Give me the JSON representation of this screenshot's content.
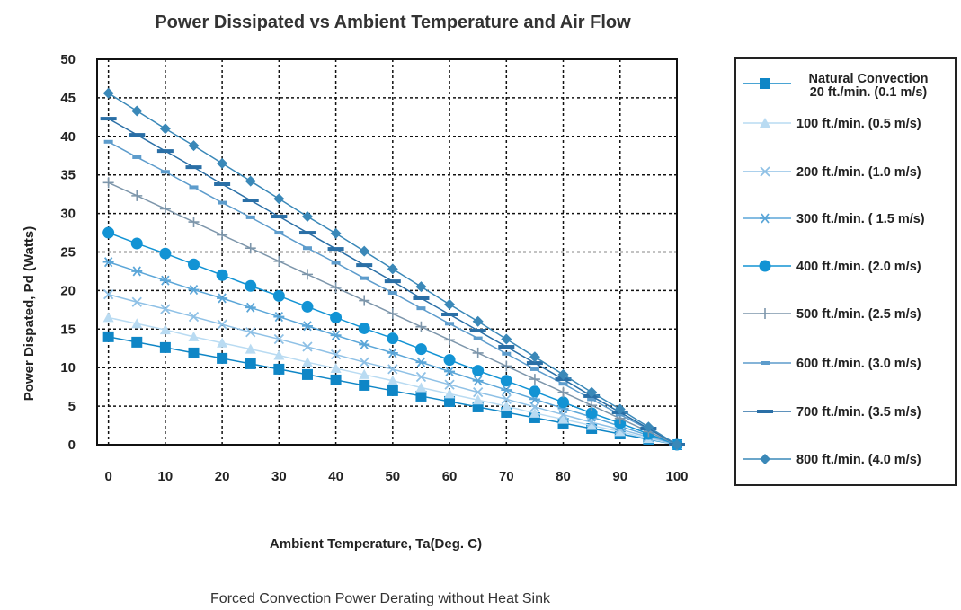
{
  "chart_data": {
    "type": "line",
    "title": "Power Dissipated vs Ambient Temperature and Air Flow",
    "xlabel": "Ambient Temperature, Ta(Deg. C)",
    "ylabel": "Power Dispated, Pd (Watts)",
    "caption": "Forced Convection Power Derating without Heat Sink",
    "xlim": [
      -2,
      100
    ],
    "ylim": [
      0,
      50
    ],
    "x_ticks": [
      "0",
      "10",
      "20",
      "30",
      "40",
      "50",
      "60",
      "70",
      "80",
      "90",
      "100"
    ],
    "y_ticks": [
      "0",
      "5",
      "10",
      "15",
      "20",
      "25",
      "30",
      "35",
      "40",
      "45",
      "50"
    ],
    "grid": true,
    "legend_position": "right",
    "x": [
      0,
      5,
      10,
      15,
      20,
      25,
      30,
      35,
      40,
      45,
      50,
      55,
      60,
      65,
      70,
      75,
      80,
      85,
      90,
      95,
      100
    ],
    "series": [
      {
        "name": "Natural Convection 20 ft./min. (0.1 m/s)",
        "legend_lines": [
          "Natural Convection",
          "20 ft./min. (0.1 m/s)"
        ],
        "marker": "square",
        "color": "#0f86c6",
        "values": [
          14.0,
          13.3,
          12.6,
          11.9,
          11.2,
          10.5,
          9.8,
          9.1,
          8.4,
          7.7,
          7.0,
          6.3,
          5.6,
          4.9,
          4.2,
          3.5,
          2.8,
          2.1,
          1.4,
          0.7,
          0
        ]
      },
      {
        "name": "100 ft./min. (0.5 m/s)",
        "legend_lines": [
          "100 ft./min. (0.5 m/s)"
        ],
        "marker": "triangle",
        "color": "#b9dbf2",
        "values": [
          16.5,
          15.7,
          14.9,
          14.0,
          13.2,
          12.4,
          11.6,
          10.7,
          9.9,
          9.1,
          8.3,
          7.4,
          6.6,
          5.8,
          5.0,
          4.1,
          3.3,
          2.5,
          1.7,
          0.8,
          0
        ]
      },
      {
        "name": "200 ft./min. (1.0 m/s)",
        "legend_lines": [
          "200 ft./min. (1.0 m/s)"
        ],
        "marker": "x",
        "color": "#8fc1e6",
        "values": [
          19.5,
          18.5,
          17.6,
          16.6,
          15.6,
          14.6,
          13.7,
          12.7,
          11.7,
          10.7,
          9.8,
          8.8,
          7.8,
          6.8,
          5.9,
          4.9,
          3.9,
          2.9,
          2.0,
          1.0,
          0
        ]
      },
      {
        "name": "300 ft./min. ( 1.5 m/s)",
        "legend_lines": [
          "300 ft./min. ( 1.5 m/s)"
        ],
        "marker": "asterisk",
        "color": "#5ba6d8",
        "values": [
          23.7,
          22.5,
          21.3,
          20.1,
          19.0,
          17.8,
          16.6,
          15.4,
          14.2,
          13.0,
          11.9,
          10.7,
          9.5,
          8.3,
          7.1,
          5.9,
          4.7,
          3.6,
          2.4,
          1.2,
          0
        ]
      },
      {
        "name": "400 ft./min. (2.0 m/s)",
        "legend_lines": [
          "400 ft./min. (2.0 m/s)"
        ],
        "marker": "circle",
        "color": "#1293d4",
        "values": [
          27.5,
          26.1,
          24.8,
          23.4,
          22.0,
          20.6,
          19.3,
          17.9,
          16.5,
          15.1,
          13.8,
          12.4,
          11.0,
          9.6,
          8.3,
          6.9,
          5.5,
          4.1,
          2.8,
          1.4,
          0
        ]
      },
      {
        "name": "500 ft./min. (2.5 m/s)",
        "legend_lines": [
          "500 ft./min. (2.5 m/s)"
        ],
        "marker": "plus",
        "color": "#7d96ab",
        "values": [
          34.0,
          32.3,
          30.6,
          28.9,
          27.2,
          25.5,
          23.8,
          22.1,
          20.4,
          18.7,
          17.0,
          15.3,
          13.6,
          11.9,
          10.2,
          8.5,
          6.8,
          5.1,
          3.4,
          1.7,
          0
        ]
      },
      {
        "name": "600 ft./min. (3.0 m/s)",
        "legend_lines": [
          "600 ft./min. (3.0 m/s)"
        ],
        "marker": "smalldash",
        "color": "#5d9ccc",
        "values": [
          39.3,
          37.3,
          35.4,
          33.4,
          31.4,
          29.5,
          27.5,
          25.5,
          23.6,
          21.6,
          19.7,
          17.7,
          15.7,
          13.8,
          11.8,
          9.8,
          7.9,
          5.9,
          3.9,
          2.0,
          0
        ]
      },
      {
        "name": "700 ft./min. (3.5 m/s)",
        "legend_lines": [
          "700 ft./min. (3.5 m/s)"
        ],
        "marker": "dash",
        "color": "#2a6fa6",
        "values": [
          42.3,
          40.2,
          38.1,
          36.0,
          33.8,
          31.7,
          29.6,
          27.5,
          25.4,
          23.3,
          21.2,
          19.0,
          16.9,
          14.8,
          12.7,
          10.6,
          8.5,
          6.3,
          4.2,
          2.1,
          0
        ]
      },
      {
        "name": "800 ft./min. (4.0 m/s)",
        "legend_lines": [
          "800 ft./min. (4.0 m/s)"
        ],
        "marker": "diamond",
        "color": "#3a88b8",
        "values": [
          45.6,
          43.3,
          41.0,
          38.8,
          36.5,
          34.2,
          31.9,
          29.6,
          27.4,
          25.1,
          22.8,
          20.5,
          18.2,
          16.0,
          13.7,
          11.4,
          9.1,
          6.8,
          4.6,
          2.3,
          0
        ]
      }
    ]
  }
}
